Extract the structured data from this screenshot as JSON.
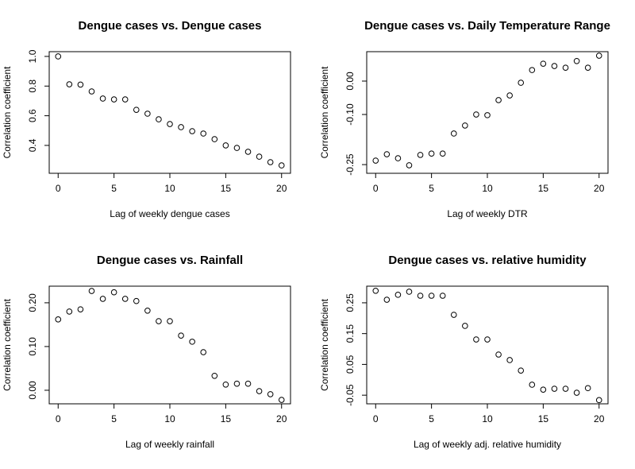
{
  "chart_data": [
    {
      "type": "scatter",
      "title": "Dengue cases vs. Dengue cases",
      "x_label": "Lag of weekly dengue cases",
      "y_label": "Correlation coefficient",
      "x": [
        0,
        1,
        2,
        3,
        4,
        5,
        6,
        7,
        8,
        9,
        10,
        11,
        12,
        13,
        14,
        15,
        16,
        17,
        18,
        19,
        20
      ],
      "values": [
        1.0,
        0.812,
        0.81,
        0.764,
        0.716,
        0.71,
        0.71,
        0.64,
        0.614,
        0.576,
        0.544,
        0.523,
        0.496,
        0.48,
        0.442,
        0.4,
        0.383,
        0.357,
        0.324,
        0.287,
        0.265
      ],
      "xlim": [
        -0.8,
        20.8
      ],
      "ylim": [
        0.212,
        1.032
      ],
      "xticks": [
        0,
        5,
        10,
        15,
        20
      ],
      "yticks": [
        0.4,
        0.6,
        0.8,
        {
          "value": 1,
          "label": "1.0"
        }
      ],
      "color": "#000000"
    },
    {
      "type": "scatter",
      "title": "Dengue cases vs. Daily Temperature Range",
      "x_label": "Lag of weekly DTR",
      "y_label": "Correlation coefficient",
      "x": [
        0,
        1,
        2,
        3,
        4,
        5,
        6,
        7,
        8,
        9,
        10,
        11,
        12,
        13,
        14,
        15,
        16,
        17,
        18,
        19,
        20
      ],
      "values": [
        -0.238,
        -0.219,
        -0.231,
        -0.252,
        -0.221,
        -0.217,
        -0.217,
        -0.157,
        -0.133,
        -0.1,
        -0.102,
        -0.057,
        -0.043,
        -0.005,
        0.033,
        0.052,
        0.045,
        0.04,
        0.06,
        0.04,
        0.076
      ],
      "xlim": [
        -0.8,
        20.8
      ],
      "ylim": [
        -0.276,
        0.088
      ],
      "xticks": [
        0,
        5,
        10,
        15,
        20
      ],
      "yticks": [
        -0.25,
        {
          "value": -0.1,
          "label": "-0.10"
        },
        {
          "value": 0,
          "label": "0.00"
        }
      ],
      "color": "#000000"
    },
    {
      "type": "scatter",
      "title": "Dengue cases vs. Rainfall",
      "x_label": "Lag of weekly rainfall",
      "y_label": "Correlation coefficient",
      "x": [
        0,
        1,
        2,
        3,
        4,
        5,
        6,
        7,
        8,
        9,
        10,
        11,
        12,
        13,
        14,
        15,
        16,
        17,
        18,
        19,
        20
      ],
      "values": [
        0.162,
        0.18,
        0.185,
        0.227,
        0.209,
        0.224,
        0.209,
        0.204,
        0.182,
        0.158,
        0.158,
        0.125,
        0.111,
        0.087,
        0.033,
        0.013,
        0.015,
        0.015,
        -0.002,
        -0.009,
        -0.022
      ],
      "xlim": [
        -0.8,
        20.8
      ],
      "ylim": [
        -0.031,
        0.238
      ],
      "xticks": [
        0,
        5,
        10,
        15,
        20
      ],
      "yticks": [
        {
          "value": 0,
          "label": "0.00"
        },
        {
          "value": 0.1,
          "label": "0.10"
        },
        {
          "value": 0.2,
          "label": "0.20"
        }
      ],
      "color": "#000000"
    },
    {
      "type": "scatter",
      "title": "Dengue cases vs. relative humidity",
      "x_label": "Lag of weekly adj. relative humidity",
      "y_label": "Correlation coefficient",
      "x": [
        0,
        1,
        2,
        3,
        4,
        5,
        6,
        7,
        8,
        9,
        10,
        11,
        12,
        13,
        14,
        15,
        16,
        17,
        18,
        19,
        20
      ],
      "values": [
        0.289,
        0.26,
        0.276,
        0.286,
        0.273,
        0.273,
        0.273,
        0.211,
        0.175,
        0.131,
        0.131,
        0.082,
        0.064,
        0.03,
        -0.016,
        -0.032,
        -0.029,
        -0.029,
        -0.042,
        -0.027,
        -0.066
      ],
      "xlim": [
        -0.8,
        20.8
      ],
      "ylim": [
        -0.078,
        0.304
      ],
      "xticks": [
        0,
        5,
        10,
        15,
        20
      ],
      "yticks": [
        {
          "value": -0.05,
          "label": "-0.05"
        },
        0.05,
        0.15,
        0.25
      ],
      "color": "#000000"
    }
  ]
}
